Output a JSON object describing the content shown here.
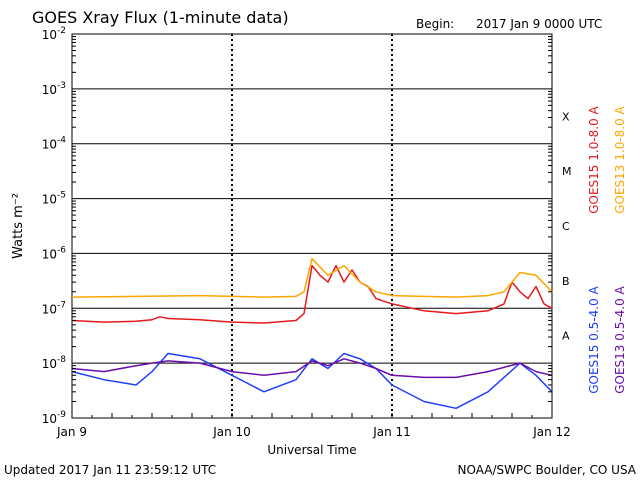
{
  "chart_data": {
    "type": "line",
    "title": "GOES Xray Flux (1-minute data)",
    "begin_label": "Begin:",
    "begin_value": "2017 Jan 9 0000 UTC",
    "xlabel": "Universal Time",
    "ylabel": "Watts m⁻²",
    "scale": "log",
    "ylim": [
      1e-09,
      0.01
    ],
    "xlim_days": [
      0,
      3
    ],
    "x_ticks": [
      {
        "label": "Jan 9",
        "day": 0
      },
      {
        "label": "Jan 10",
        "day": 1
      },
      {
        "label": "Jan 11",
        "day": 2
      },
      {
        "label": "Jan 12",
        "day": 3
      }
    ],
    "y_ticks": [
      {
        "base": "10",
        "exp": "-2",
        "value": 0.01
      },
      {
        "base": "10",
        "exp": "-3",
        "value": 0.001
      },
      {
        "base": "10",
        "exp": "-4",
        "value": 0.0001
      },
      {
        "base": "10",
        "exp": "-5",
        "value": 1e-05
      },
      {
        "base": "10",
        "exp": "-6",
        "value": 1e-06
      },
      {
        "base": "10",
        "exp": "-7",
        "value": 1e-07
      },
      {
        "base": "10",
        "exp": "-8",
        "value": 1e-08
      },
      {
        "base": "10",
        "exp": "-9",
        "value": 1e-09
      }
    ],
    "flare_classes": [
      {
        "label": "X",
        "lower": 0.0001
      },
      {
        "label": "M",
        "lower": 1e-05
      },
      {
        "label": "C",
        "lower": 1e-06
      },
      {
        "label": "B",
        "lower": 1e-07
      },
      {
        "label": "A",
        "lower": 1e-08
      }
    ],
    "grid": true,
    "legend_position": "right",
    "series": [
      {
        "name": "GOES15 1.0-8.0 A",
        "color": "#e41a1c",
        "x": [
          0,
          0.2,
          0.4,
          0.5,
          0.55,
          0.6,
          0.8,
          1.0,
          1.2,
          1.4,
          1.45,
          1.5,
          1.55,
          1.6,
          1.65,
          1.7,
          1.75,
          1.8,
          1.85,
          1.9,
          2.0,
          2.2,
          2.4,
          2.6,
          2.7,
          2.75,
          2.8,
          2.85,
          2.9,
          2.95,
          3.0
        ],
        "y": [
          6e-08,
          5.6e-08,
          5.8e-08,
          6.2e-08,
          7e-08,
          6.5e-08,
          6.2e-08,
          5.6e-08,
          5.4e-08,
          6e-08,
          8e-08,
          6e-07,
          4e-07,
          3e-07,
          6e-07,
          3e-07,
          5e-07,
          3e-07,
          2.5e-07,
          1.5e-07,
          1.2e-07,
          9e-08,
          8e-08,
          9e-08,
          1.2e-07,
          3e-07,
          2e-07,
          1.5e-07,
          2.5e-07,
          1.2e-07,
          1e-07
        ]
      },
      {
        "name": "GOES13 1.0-8.0 A",
        "color": "#ffa500",
        "x": [
          0,
          0.4,
          0.8,
          1.2,
          1.4,
          1.45,
          1.5,
          1.6,
          1.7,
          1.8,
          1.9,
          2.0,
          2.4,
          2.6,
          2.7,
          2.8,
          2.9,
          3.0
        ],
        "y": [
          1.6e-07,
          1.65e-07,
          1.7e-07,
          1.6e-07,
          1.65e-07,
          2e-07,
          8e-07,
          4e-07,
          6e-07,
          3e-07,
          2e-07,
          1.7e-07,
          1.6e-07,
          1.7e-07,
          2e-07,
          4.5e-07,
          4e-07,
          2e-07
        ]
      },
      {
        "name": "GOES15 0.5-4.0 A",
        "color": "#1f3fff",
        "x": [
          0,
          0.2,
          0.4,
          0.5,
          0.6,
          0.8,
          1.0,
          1.2,
          1.4,
          1.5,
          1.6,
          1.7,
          1.8,
          1.9,
          2.0,
          2.2,
          2.4,
          2.6,
          2.8,
          2.9,
          3.0
        ],
        "y": [
          7e-09,
          5e-09,
          4e-09,
          7e-09,
          1.5e-08,
          1.2e-08,
          6e-09,
          3e-09,
          5e-09,
          1.2e-08,
          8e-09,
          1.5e-08,
          1.2e-08,
          8e-09,
          4e-09,
          2e-09,
          1.5e-09,
          3e-09,
          1e-08,
          6e-09,
          3e-09
        ]
      },
      {
        "name": "GOES13 0.5-4.0 A",
        "color": "#6a0dad",
        "x": [
          0,
          0.2,
          0.4,
          0.5,
          0.6,
          0.8,
          1.0,
          1.2,
          1.4,
          1.5,
          1.6,
          1.7,
          1.8,
          1.9,
          2.0,
          2.2,
          2.4,
          2.6,
          2.8,
          2.9,
          3.0
        ],
        "y": [
          8e-09,
          7e-09,
          9e-09,
          1e-08,
          1.1e-08,
          1e-08,
          7e-09,
          6e-09,
          7e-09,
          1.1e-08,
          9e-09,
          1.2e-08,
          1e-08,
          8e-09,
          6e-09,
          5.5e-09,
          5.5e-09,
          7e-09,
          1e-08,
          7e-09,
          6e-09
        ]
      }
    ]
  },
  "footer": {
    "updated": "Updated 2017 Jan 11 23:59:12 UTC",
    "credit": "NOAA/SWPC Boulder, CO USA"
  }
}
